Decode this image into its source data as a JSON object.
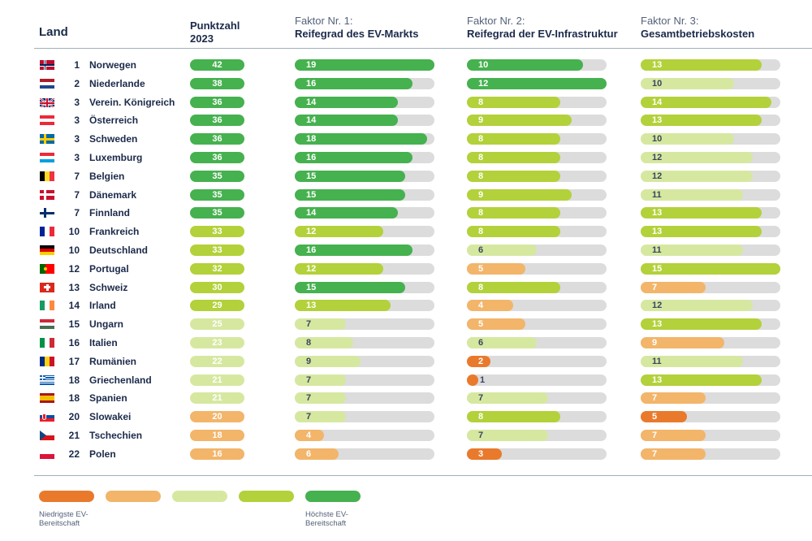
{
  "headers": {
    "land": "Land",
    "score": [
      "Punktzahl",
      "2023"
    ],
    "f1": [
      "Faktor Nr. 1:",
      "Reifegrad des EV-Markts"
    ],
    "f2": [
      "Faktor Nr. 2:",
      "Reifegrad der EV-Infrastruktur"
    ],
    "f3": [
      "Faktor Nr. 3:",
      "Gesamtbetriebskosten"
    ]
  },
  "colors": {
    "lowest": "#e97a2c",
    "low": "#f2b56a",
    "mid": "#d6e8a0",
    "high": "#b3d13a",
    "highest": "#46b14f",
    "track": "#dcdcdc"
  },
  "legend": {
    "low_label": "Niedrigste EV-Bereitschaft",
    "high_label": "Höchste EV-Bereitschaft"
  },
  "chart_data": {
    "type": "table",
    "columns": [
      "Land",
      "Punktzahl 2023",
      "Faktor Nr. 1: Reifegrad des EV-Markts",
      "Faktor Nr. 2: Reifegrad der EV-Infrastruktur",
      "Faktor Nr. 3: Gesamtbetriebskosten"
    ],
    "rows": [
      {
        "rank": 1,
        "country": "Norwegen",
        "flag": "NO",
        "score": 42,
        "f1": 19,
        "f2": 10,
        "f3": 13
      },
      {
        "rank": 2,
        "country": "Niederlande",
        "flag": "NL",
        "score": 38,
        "f1": 16,
        "f2": 12,
        "f3": 10
      },
      {
        "rank": 3,
        "country": "Verein. Königreich",
        "flag": "GB",
        "score": 36,
        "f1": 14,
        "f2": 8,
        "f3": 14
      },
      {
        "rank": 3,
        "country": "Österreich",
        "flag": "AT",
        "score": 36,
        "f1": 14,
        "f2": 9,
        "f3": 13
      },
      {
        "rank": 3,
        "country": "Schweden",
        "flag": "SE",
        "score": 36,
        "f1": 18,
        "f2": 8,
        "f3": 10
      },
      {
        "rank": 3,
        "country": "Luxemburg",
        "flag": "LU",
        "score": 36,
        "f1": 16,
        "f2": 8,
        "f3": 12
      },
      {
        "rank": 7,
        "country": "Belgien",
        "flag": "BE",
        "score": 35,
        "f1": 15,
        "f2": 8,
        "f3": 12
      },
      {
        "rank": 7,
        "country": "Dänemark",
        "flag": "DK",
        "score": 35,
        "f1": 15,
        "f2": 9,
        "f3": 11
      },
      {
        "rank": 7,
        "country": "Finnland",
        "flag": "FI",
        "score": 35,
        "f1": 14,
        "f2": 8,
        "f3": 13
      },
      {
        "rank": 10,
        "country": "Frankreich",
        "flag": "FR",
        "score": 33,
        "f1": 12,
        "f2": 8,
        "f3": 13
      },
      {
        "rank": 10,
        "country": "Deutschland",
        "flag": "DE",
        "score": 33,
        "f1": 16,
        "f2": 6,
        "f3": 11
      },
      {
        "rank": 12,
        "country": "Portugal",
        "flag": "PT",
        "score": 32,
        "f1": 12,
        "f2": 5,
        "f3": 15
      },
      {
        "rank": 13,
        "country": "Schweiz",
        "flag": "CH",
        "score": 30,
        "f1": 15,
        "f2": 8,
        "f3": 7
      },
      {
        "rank": 14,
        "country": "Irland",
        "flag": "IE",
        "score": 29,
        "f1": 13,
        "f2": 4,
        "f3": 12
      },
      {
        "rank": 15,
        "country": "Ungarn",
        "flag": "HU",
        "score": 25,
        "f1": 7,
        "f2": 5,
        "f3": 13
      },
      {
        "rank": 16,
        "country": "Italien",
        "flag": "IT",
        "score": 23,
        "f1": 8,
        "f2": 6,
        "f3": 9
      },
      {
        "rank": 17,
        "country": "Rumänien",
        "flag": "RO",
        "score": 22,
        "f1": 9,
        "f2": 2,
        "f3": 11
      },
      {
        "rank": 18,
        "country": "Griechenland",
        "flag": "GR",
        "score": 21,
        "f1": 7,
        "f2": 1,
        "f3": 13
      },
      {
        "rank": 18,
        "country": "Spanien",
        "flag": "ES",
        "score": 21,
        "f1": 7,
        "f2": 7,
        "f3": 7
      },
      {
        "rank": 20,
        "country": "Slowakei",
        "flag": "SK",
        "score": 20,
        "f1": 7,
        "f2": 8,
        "f3": 5
      },
      {
        "rank": 21,
        "country": "Tschechien",
        "flag": "CZ",
        "score": 18,
        "f1": 4,
        "f2": 7,
        "f3": 7
      },
      {
        "rank": 22,
        "country": "Polen",
        "flag": "PL",
        "score": 16,
        "f1": 6,
        "f2": 3,
        "f3": 7
      }
    ],
    "score_colors": [
      "highest",
      "highest",
      "highest",
      "highest",
      "highest",
      "highest",
      "highest",
      "highest",
      "highest",
      "high",
      "high",
      "high",
      "high",
      "high",
      "mid",
      "mid",
      "mid",
      "mid",
      "mid",
      "low",
      "low",
      "low"
    ],
    "f1_colors": [
      "highest",
      "highest",
      "highest",
      "highest",
      "highest",
      "highest",
      "highest",
      "highest",
      "highest",
      "high",
      "highest",
      "high",
      "highest",
      "high",
      "mid",
      "mid",
      "mid",
      "mid",
      "mid",
      "mid",
      "low",
      "low"
    ],
    "f2_colors": [
      "highest",
      "highest",
      "high",
      "high",
      "high",
      "high",
      "high",
      "high",
      "high",
      "high",
      "mid",
      "low",
      "high",
      "low",
      "low",
      "mid",
      "lowest",
      "lowest",
      "mid",
      "high",
      "mid",
      "lowest"
    ],
    "f3_colors": [
      "high",
      "mid",
      "high",
      "high",
      "mid",
      "mid",
      "mid",
      "mid",
      "high",
      "high",
      "mid",
      "high",
      "low",
      "mid",
      "high",
      "low",
      "mid",
      "high",
      "low",
      "lowest",
      "low",
      "low"
    ],
    "scales": {
      "score_max": 42,
      "f1_max": 19,
      "f2_max": 12,
      "f3_max": 15
    }
  }
}
